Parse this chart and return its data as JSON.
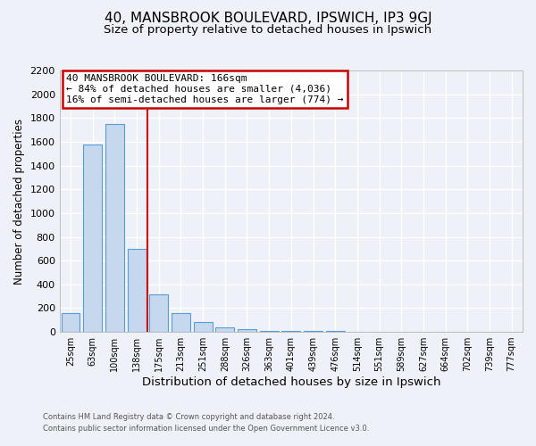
{
  "title": "40, MANSBROOK BOULEVARD, IPSWICH, IP3 9GJ",
  "subtitle": "Size of property relative to detached houses in Ipswich",
  "xlabel": "Distribution of detached houses by size in Ipswich",
  "ylabel": "Number of detached properties",
  "bar_labels": [
    "25sqm",
    "63sqm",
    "100sqm",
    "138sqm",
    "175sqm",
    "213sqm",
    "251sqm",
    "288sqm",
    "326sqm",
    "363sqm",
    "401sqm",
    "439sqm",
    "476sqm",
    "514sqm",
    "551sqm",
    "589sqm",
    "627sqm",
    "664sqm",
    "702sqm",
    "739sqm",
    "777sqm"
  ],
  "bar_values": [
    160,
    1580,
    1750,
    700,
    315,
    155,
    80,
    40,
    20,
    10,
    10,
    5,
    5,
    0,
    0,
    0,
    0,
    0,
    0,
    0,
    0
  ],
  "bar_color": "#c5d8ed",
  "bar_edge_color": "#5b9bd5",
  "vline_color": "#cc0000",
  "ylim": [
    0,
    2200
  ],
  "yticks": [
    0,
    200,
    400,
    600,
    800,
    1000,
    1200,
    1400,
    1600,
    1800,
    2000,
    2200
  ],
  "annotation_title": "40 MANSBROOK BOULEVARD: 166sqm",
  "annotation_line1": "← 84% of detached houses are smaller (4,036)",
  "annotation_line2": "16% of semi-detached houses are larger (774) →",
  "annotation_box_color": "#ffffff",
  "annotation_box_edge": "#cc0000",
  "footer1": "Contains HM Land Registry data © Crown copyright and database right 2024.",
  "footer2": "Contains public sector information licensed under the Open Government Licence v3.0.",
  "background_color": "#eef2f8",
  "grid_color": "#ffffff",
  "title_fontsize": 11,
  "subtitle_fontsize": 9.5,
  "footer_color": "#555555"
}
